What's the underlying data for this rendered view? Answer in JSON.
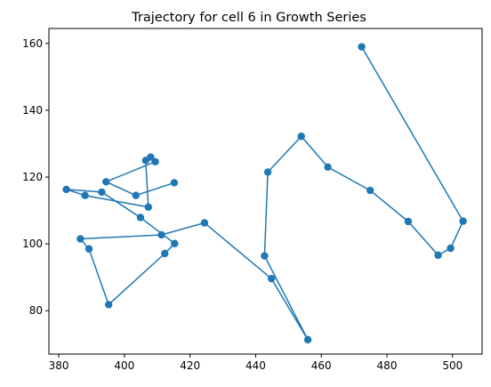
{
  "chart_data": {
    "type": "line",
    "title": "Trajectory for cell 6 in Growth Series",
    "xlabel": "",
    "ylabel": "",
    "xlim": [
      377,
      509
    ],
    "ylim": [
      67,
      164.5
    ],
    "x_ticks": [
      380,
      400,
      420,
      440,
      460,
      480,
      500
    ],
    "y_ticks": [
      80,
      100,
      120,
      140,
      160
    ],
    "grid": false,
    "markers": true,
    "colors": {
      "series": "#1f77b4"
    },
    "series": [
      {
        "x": [
          472.3,
          503.2,
          499.4,
          495.6,
          486.5,
          474.9,
          462.0,
          453.9,
          443.7,
          442.7,
          455.9,
          444.8,
          424.4,
          411.3,
          386.6,
          389.2,
          395.2,
          412.3,
          415.3,
          404.9,
          393.1,
          382.3,
          388.0,
          407.3,
          406.5,
          408.0,
          409.4,
          394.4,
          403.5,
          415.2
        ],
        "y": [
          159.0,
          106.8,
          98.7,
          96.6,
          106.7,
          116.0,
          123.0,
          132.2,
          121.5,
          96.4,
          71.3,
          89.6,
          106.3,
          102.7,
          101.5,
          98.5,
          81.8,
          97.1,
          100.1,
          107.9,
          115.5,
          116.3,
          114.5,
          111.0,
          125.0,
          126.0,
          124.6,
          118.6,
          114.5,
          118.3
        ]
      }
    ]
  }
}
